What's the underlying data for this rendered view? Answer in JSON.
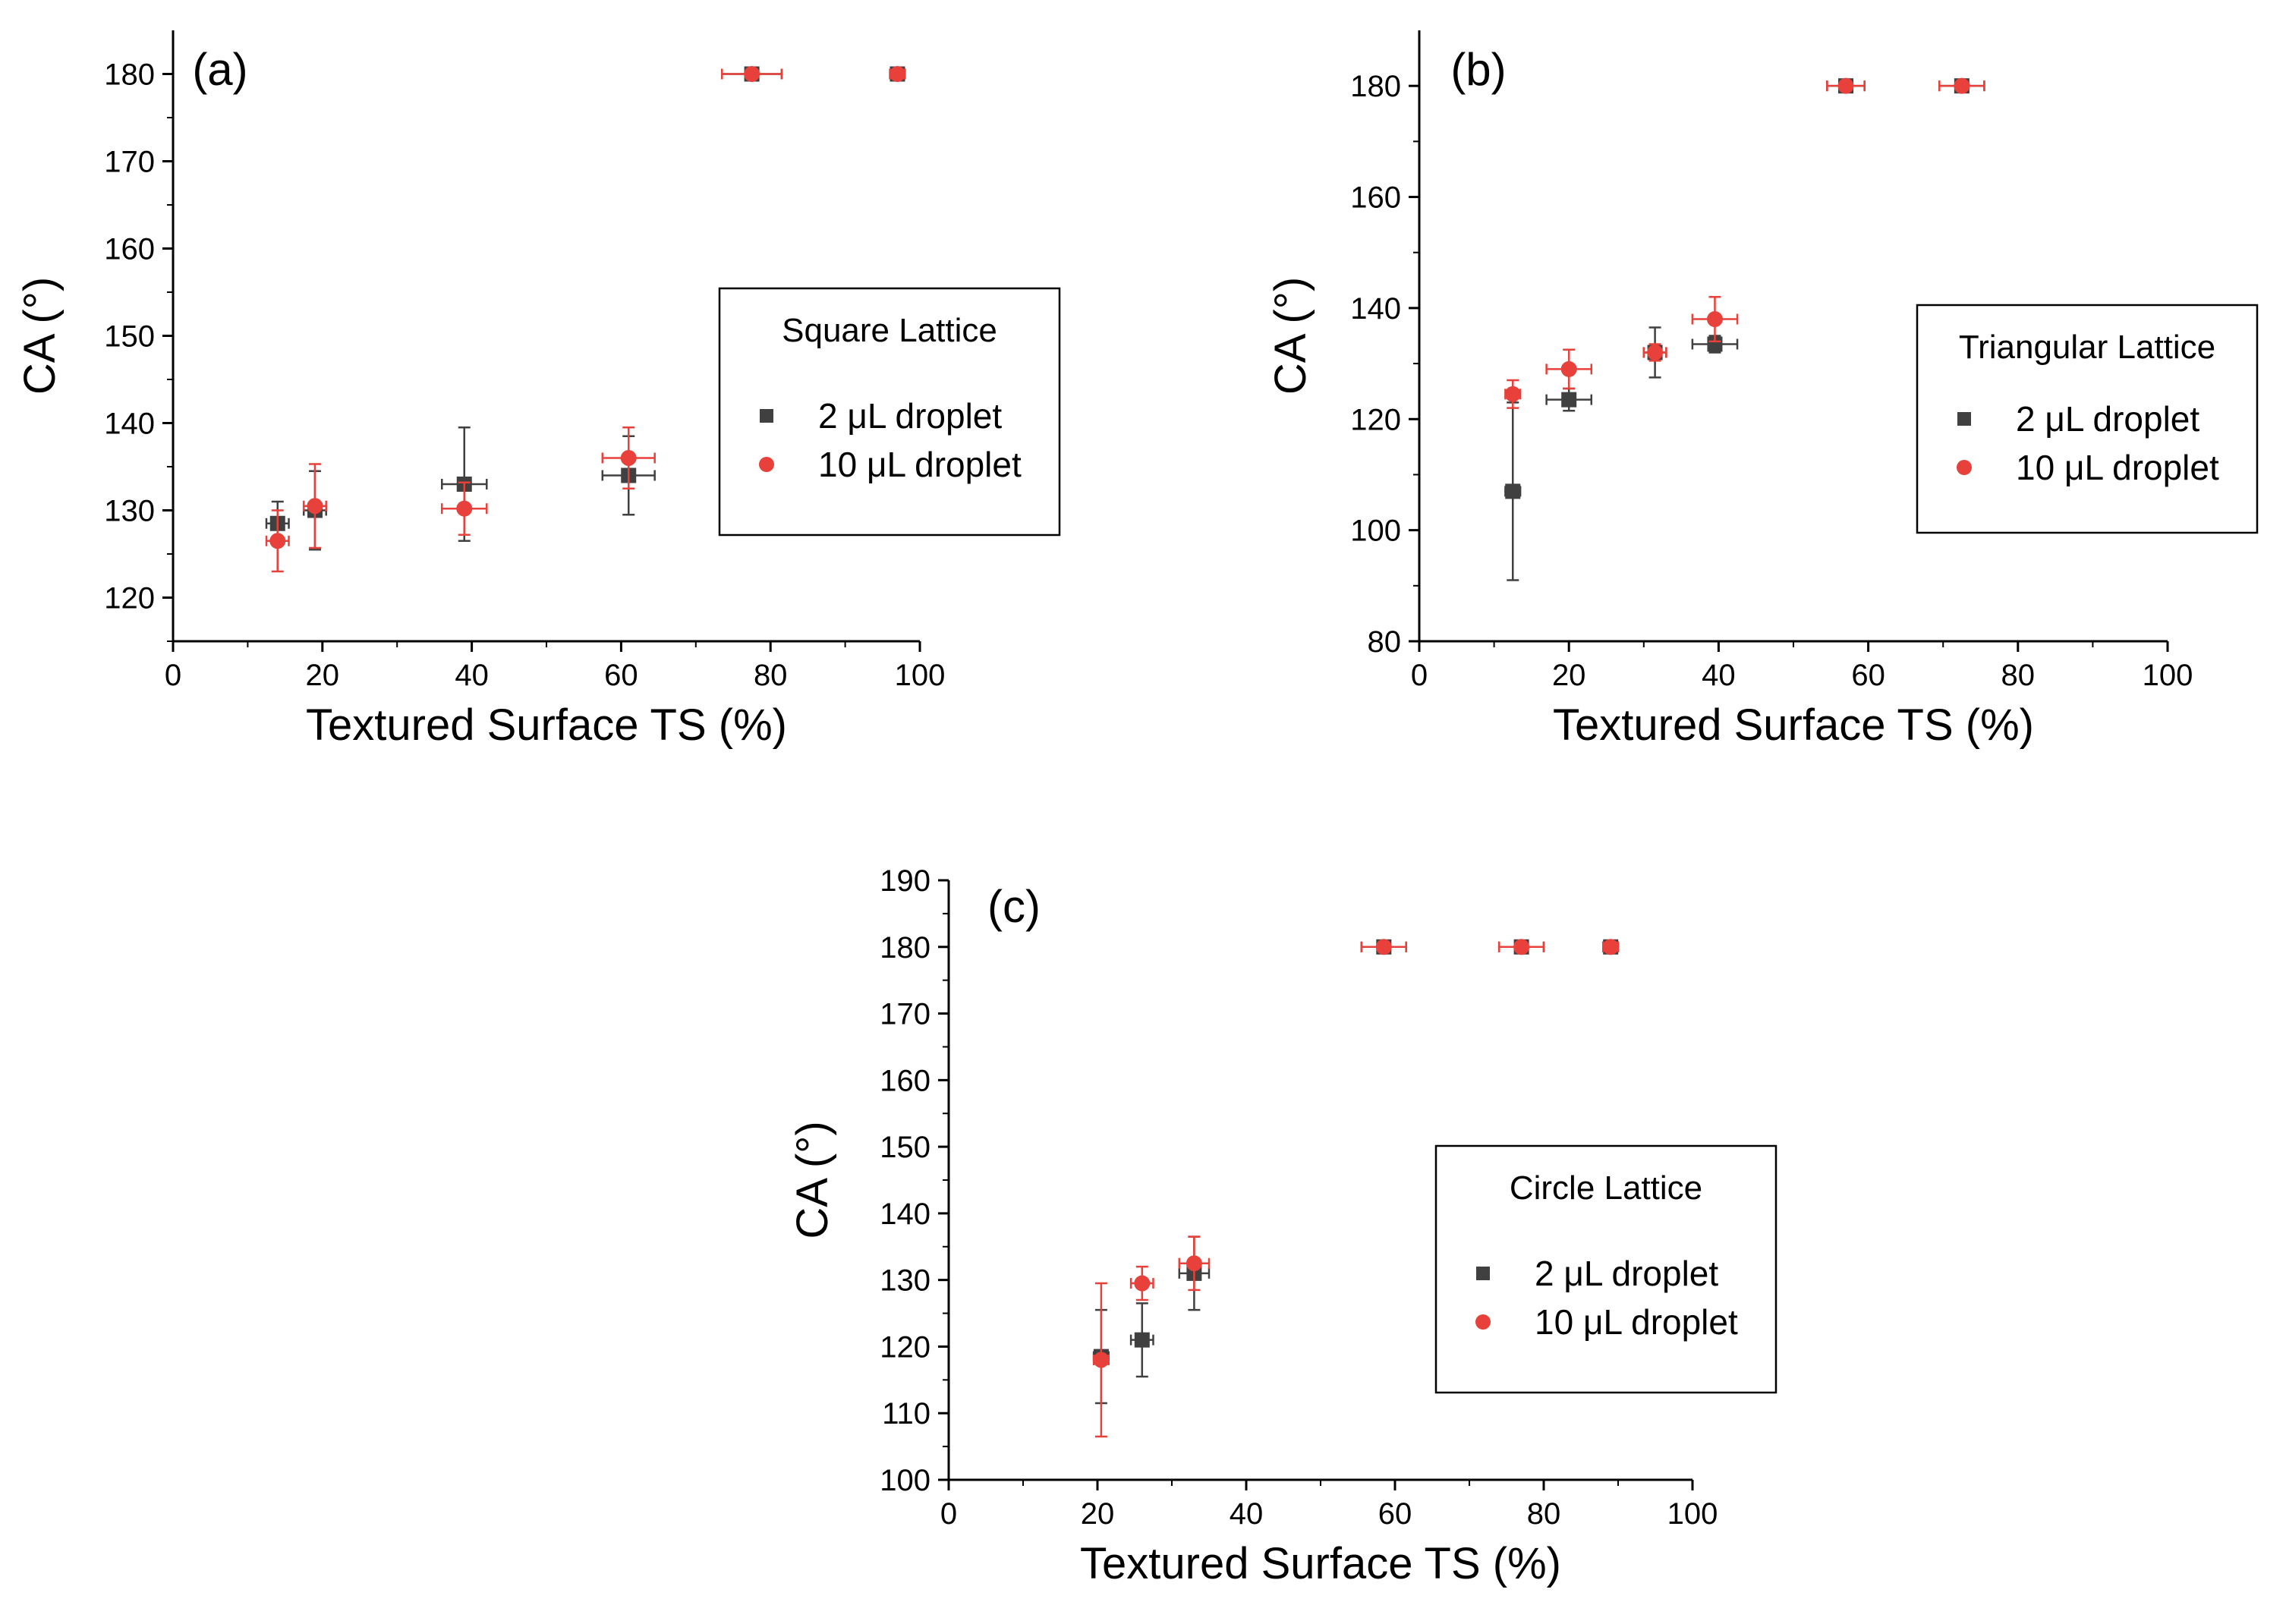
{
  "chart_data": [
    {
      "type": "scatter",
      "panel_label": "(a)",
      "xlabel": "Textured Surface TS (%)",
      "ylabel": "CA (°)",
      "xlim": [
        0,
        100
      ],
      "ylim": [
        115,
        185
      ],
      "xticks": [
        0,
        20,
        40,
        60,
        80,
        100
      ],
      "yticks": [
        120,
        130,
        140,
        150,
        160,
        170,
        180
      ],
      "legend_title": "Square Lattice",
      "series": [
        {
          "name": "2 μL droplet",
          "marker": "square",
          "color": "#404040",
          "points": [
            {
              "x": 14,
              "y": 128.5,
              "xerr": 1.5,
              "yerr": 2.5
            },
            {
              "x": 19,
              "y": 130,
              "xerr": 1.5,
              "yerr": 4.5
            },
            {
              "x": 39,
              "y": 133,
              "xerr": 3,
              "yerr": 6.5
            },
            {
              "x": 61,
              "y": 134,
              "xerr": 3.5,
              "yerr": 4.5
            },
            {
              "x": 77.5,
              "y": 180,
              "xerr": 4,
              "yerr": 0
            },
            {
              "x": 97,
              "y": 180,
              "xerr": 1,
              "yerr": 0
            }
          ]
        },
        {
          "name": "10 μL droplet",
          "marker": "circle",
          "color": "#e8403a",
          "points": [
            {
              "x": 14,
              "y": 126.5,
              "xerr": 1.5,
              "yerr": 3.5
            },
            {
              "x": 19,
              "y": 130.5,
              "xerr": 1.5,
              "yerr": 4.8
            },
            {
              "x": 39,
              "y": 130.2,
              "xerr": 3,
              "yerr": 3
            },
            {
              "x": 61,
              "y": 136,
              "xerr": 3.5,
              "yerr": 3.5
            },
            {
              "x": 77.5,
              "y": 180,
              "xerr": 4,
              "yerr": 0
            },
            {
              "x": 97,
              "y": 180,
              "xerr": 1,
              "yerr": 0
            }
          ]
        }
      ]
    },
    {
      "type": "scatter",
      "panel_label": "(b)",
      "xlabel": "Textured Surface TS (%)",
      "ylabel": "CA (°)",
      "xlim": [
        0,
        100
      ],
      "ylim": [
        80,
        190
      ],
      "xticks": [
        0,
        20,
        40,
        60,
        80,
        100
      ],
      "yticks": [
        80,
        100,
        120,
        140,
        160,
        180
      ],
      "legend_title": "Triangular Lattice",
      "series": [
        {
          "name": "2 μL droplet",
          "marker": "square",
          "color": "#404040",
          "points": [
            {
              "x": 12.5,
              "y": 107,
              "xerr": 1,
              "yerr": 16
            },
            {
              "x": 20,
              "y": 123.5,
              "xerr": 3,
              "yerr": 2
            },
            {
              "x": 31.5,
              "y": 132,
              "xerr": 1.5,
              "yerr": 4.5
            },
            {
              "x": 39.5,
              "y": 133.5,
              "xerr": 3,
              "yerr": 1.5
            },
            {
              "x": 57,
              "y": 180,
              "xerr": 2.5,
              "yerr": 0
            },
            {
              "x": 72.5,
              "y": 180,
              "xerr": 3,
              "yerr": 0
            }
          ]
        },
        {
          "name": "10 μL droplet",
          "marker": "circle",
          "color": "#e8403a",
          "points": [
            {
              "x": 12.5,
              "y": 124.5,
              "xerr": 1,
              "yerr": 2.5
            },
            {
              "x": 20,
              "y": 129,
              "xerr": 3,
              "yerr": 3.5
            },
            {
              "x": 31.5,
              "y": 132,
              "xerr": 1.5,
              "yerr": 1.5
            },
            {
              "x": 39.5,
              "y": 138,
              "xerr": 3,
              "yerr": 4
            },
            {
              "x": 57,
              "y": 180,
              "xerr": 2.5,
              "yerr": 0
            },
            {
              "x": 72.5,
              "y": 180,
              "xerr": 3,
              "yerr": 0
            }
          ]
        }
      ]
    },
    {
      "type": "scatter",
      "panel_label": "(c)",
      "xlabel": "Textured Surface TS (%)",
      "ylabel": "CA (°)",
      "xlim": [
        0,
        100
      ],
      "ylim": [
        100,
        190
      ],
      "xticks": [
        0,
        20,
        40,
        60,
        80,
        100
      ],
      "yticks": [
        100,
        110,
        120,
        130,
        140,
        150,
        160,
        170,
        180,
        190
      ],
      "legend_title": "Circle Lattice",
      "series": [
        {
          "name": "2 μL droplet",
          "marker": "square",
          "color": "#404040",
          "points": [
            {
              "x": 20.5,
              "y": 118.5,
              "xerr": 1,
              "yerr": 7
            },
            {
              "x": 26,
              "y": 121,
              "xerr": 1.5,
              "yerr": 5.5
            },
            {
              "x": 33,
              "y": 131,
              "xerr": 2,
              "yerr": 5.5
            },
            {
              "x": 58.5,
              "y": 180,
              "xerr": 3,
              "yerr": 0
            },
            {
              "x": 77,
              "y": 180,
              "xerr": 3,
              "yerr": 0
            },
            {
              "x": 89,
              "y": 180,
              "xerr": 1,
              "yerr": 0
            }
          ]
        },
        {
          "name": "10 μL droplet",
          "marker": "circle",
          "color": "#e8403a",
          "points": [
            {
              "x": 20.5,
              "y": 118,
              "xerr": 1,
              "yerr": 11.5
            },
            {
              "x": 26,
              "y": 129.5,
              "xerr": 1.5,
              "yerr": 2.5
            },
            {
              "x": 33,
              "y": 132.5,
              "xerr": 2,
              "yerr": 4
            },
            {
              "x": 58.5,
              "y": 180,
              "xerr": 3,
              "yerr": 0
            },
            {
              "x": 77,
              "y": 180,
              "xerr": 3,
              "yerr": 0
            },
            {
              "x": 89,
              "y": 180,
              "xerr": 1,
              "yerr": 0
            }
          ]
        }
      ]
    }
  ]
}
